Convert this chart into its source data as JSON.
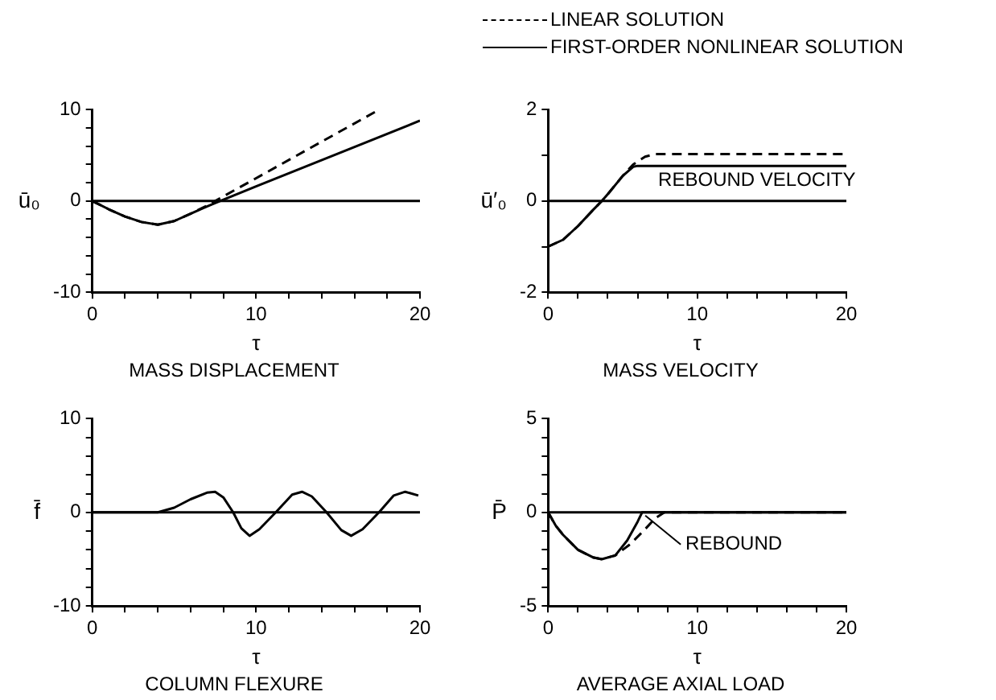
{
  "chart_data": [
    {
      "type": "line",
      "title": "MASS DISPLACEMENT",
      "xlabel": "τ",
      "ylabel": "ū₀",
      "xlim": [
        0,
        20
      ],
      "ylim": [
        -10,
        10
      ],
      "xticks": [
        0,
        {
          "value": 2,
          "label": null
        },
        {
          "value": 4,
          "label": null
        },
        {
          "value": 6,
          "label": null
        },
        {
          "value": 8,
          "label": null
        },
        10,
        {
          "value": 12,
          "label": null
        },
        {
          "value": 14,
          "label": null
        },
        {
          "value": 16,
          "label": null
        },
        {
          "value": 18,
          "label": null
        },
        20
      ],
      "yticks": [
        -10,
        {
          "value": -8,
          "label": null
        },
        {
          "value": -6,
          "label": null
        },
        {
          "value": -4,
          "label": null
        },
        {
          "value": -2,
          "label": null
        },
        0,
        {
          "value": 2,
          "label": null
        },
        {
          "value": 4,
          "label": null
        },
        {
          "value": 6,
          "label": null
        },
        {
          "value": 8,
          "label": null
        },
        10
      ],
      "grid": false,
      "marker": "none",
      "ref_lines": [
        {
          "axis": "y",
          "value": 0
        }
      ],
      "series": [
        {
          "color": "#000000",
          "line_style": "dashed",
          "x": [
            0,
            1,
            2,
            3,
            4,
            5,
            6,
            7,
            8,
            17.5
          ],
          "values": [
            0,
            -0.9,
            -1.7,
            -2.3,
            -2.6,
            -2.2,
            -1.4,
            -0.5,
            0.5,
            10
          ]
        },
        {
          "color": "#000000",
          "line_style": "solid",
          "x": [
            0,
            1,
            2,
            3,
            4,
            5,
            6,
            7,
            7.8,
            10,
            15,
            20
          ],
          "values": [
            0,
            -0.9,
            -1.7,
            -2.3,
            -2.6,
            -2.2,
            -1.4,
            -0.6,
            0,
            1.6,
            5.2,
            8.8
          ]
        }
      ]
    },
    {
      "type": "line",
      "title": "MASS VELOCITY",
      "xlabel": "τ",
      "ylabel": "ū′₀",
      "xlim": [
        0,
        20
      ],
      "ylim": [
        -2,
        2
      ],
      "xticks": [
        0,
        {
          "value": 2,
          "label": null
        },
        {
          "value": 4,
          "label": null
        },
        {
          "value": 6,
          "label": null
        },
        {
          "value": 8,
          "label": null
        },
        10,
        {
          "value": 12,
          "label": null
        },
        {
          "value": 14,
          "label": null
        },
        {
          "value": 16,
          "label": null
        },
        {
          "value": 18,
          "label": null
        },
        20
      ],
      "yticks": [
        -2,
        {
          "value": -1,
          "label": null
        },
        0,
        {
          "value": 1,
          "label": null
        },
        2
      ],
      "grid": false,
      "marker": "none",
      "legend": "top",
      "ref_lines": [
        {
          "axis": "y",
          "value": 0
        }
      ],
      "annotations": [
        {
          "text": "REBOUND VELOCITY",
          "x": 14,
          "y": 0.77
        }
      ],
      "series": [
        {
          "name": "LINEAR SOLUTION",
          "color": "#000000",
          "line_style": "dashed",
          "x": [
            0,
            1,
            2,
            3,
            3.6,
            4,
            5,
            5.7,
            6.5,
            7.2,
            20
          ],
          "values": [
            -1,
            -0.85,
            -0.55,
            -0.2,
            0,
            0.15,
            0.55,
            0.8,
            0.97,
            1.03,
            1.03
          ]
        },
        {
          "name": "FIRST-ORDER NONLINEAR SOLUTION",
          "color": "#000000",
          "line_style": "solid",
          "x": [
            0,
            1,
            2,
            3,
            3.6,
            4,
            5,
            5.7,
            6,
            20
          ],
          "values": [
            -1,
            -0.85,
            -0.55,
            -0.2,
            0,
            0.15,
            0.55,
            0.75,
            0.77,
            0.77
          ]
        }
      ]
    },
    {
      "type": "line",
      "title": "COLUMN FLEXURE",
      "xlabel": "τ",
      "ylabel": "f̄",
      "xlim": [
        0,
        20
      ],
      "ylim": [
        -10,
        10
      ],
      "xticks": [
        0,
        {
          "value": 2,
          "label": null
        },
        {
          "value": 4,
          "label": null
        },
        {
          "value": 6,
          "label": null
        },
        {
          "value": 8,
          "label": null
        },
        10,
        {
          "value": 12,
          "label": null
        },
        {
          "value": 14,
          "label": null
        },
        {
          "value": 16,
          "label": null
        },
        {
          "value": 18,
          "label": null
        },
        20
      ],
      "yticks": [
        -10,
        {
          "value": -8,
          "label": null
        },
        {
          "value": -6,
          "label": null
        },
        {
          "value": -4,
          "label": null
        },
        {
          "value": -2,
          "label": null
        },
        0,
        {
          "value": 2,
          "label": null
        },
        {
          "value": 4,
          "label": null
        },
        {
          "value": 6,
          "label": null
        },
        {
          "value": 8,
          "label": null
        },
        10
      ],
      "grid": false,
      "marker": "none",
      "ref_lines": [
        {
          "axis": "y",
          "value": 0
        }
      ],
      "series": [
        {
          "color": "#000000",
          "line_style": "solid",
          "x": [
            0,
            4,
            5,
            6,
            7,
            7.5,
            8,
            8.6,
            9.1,
            9.6,
            10.2,
            11.2,
            12.2,
            12.8,
            13.4,
            14.3,
            15.2,
            15.8,
            16.5,
            17.5,
            18.4,
            19.1,
            19.9
          ],
          "values": [
            0,
            0,
            0.5,
            1.4,
            2.1,
            2.2,
            1.6,
            0,
            -1.7,
            -2.5,
            -1.8,
            0,
            1.9,
            2.2,
            1.7,
            0,
            -1.9,
            -2.5,
            -1.8,
            0,
            1.8,
            2.2,
            1.8
          ]
        }
      ]
    },
    {
      "type": "line",
      "title": "AVERAGE AXIAL LOAD",
      "xlabel": "τ",
      "ylabel": "P̄",
      "xlim": [
        0,
        20
      ],
      "ylim": [
        -5,
        5
      ],
      "xticks": [
        0,
        {
          "value": 2,
          "label": null
        },
        {
          "value": 4,
          "label": null
        },
        {
          "value": 6,
          "label": null
        },
        {
          "value": 8,
          "label": null
        },
        10,
        {
          "value": 12,
          "label": null
        },
        {
          "value": 14,
          "label": null
        },
        {
          "value": 16,
          "label": null
        },
        {
          "value": 18,
          "label": null
        },
        20
      ],
      "yticks": [
        -5,
        {
          "value": -4,
          "label": null
        },
        {
          "value": -3,
          "label": null
        },
        {
          "value": -2,
          "label": null
        },
        {
          "value": -1,
          "label": null
        },
        0,
        {
          "value": 1,
          "label": null
        },
        {
          "value": 2,
          "label": null
        },
        {
          "value": 3,
          "label": null
        },
        {
          "value": 4,
          "label": null
        },
        5
      ],
      "grid": false,
      "marker": "none",
      "ref_lines": [
        {
          "axis": "y",
          "value": 0
        }
      ],
      "annotations": [
        {
          "text": "REBOUND",
          "x": 6.3,
          "y": 0
        }
      ],
      "series": [
        {
          "color": "#000000",
          "line_style": "dashed",
          "x": [
            0,
            0.5,
            1,
            2,
            3,
            3.6,
            4.5,
            5.5,
            6.5,
            7.2,
            7.8,
            20
          ],
          "values": [
            0,
            -0.7,
            -1.2,
            -2,
            -2.4,
            -2.5,
            -2.3,
            -1.7,
            -0.9,
            -0.3,
            0,
            0
          ]
        },
        {
          "color": "#000000",
          "line_style": "solid",
          "x": [
            0,
            0.5,
            1,
            2,
            3,
            3.6,
            4.5,
            5.3,
            6,
            6.3,
            20
          ],
          "values": [
            0,
            -0.7,
            -1.2,
            -2,
            -2.4,
            -2.5,
            -2.3,
            -1.5,
            -0.5,
            0,
            0
          ]
        }
      ]
    }
  ]
}
